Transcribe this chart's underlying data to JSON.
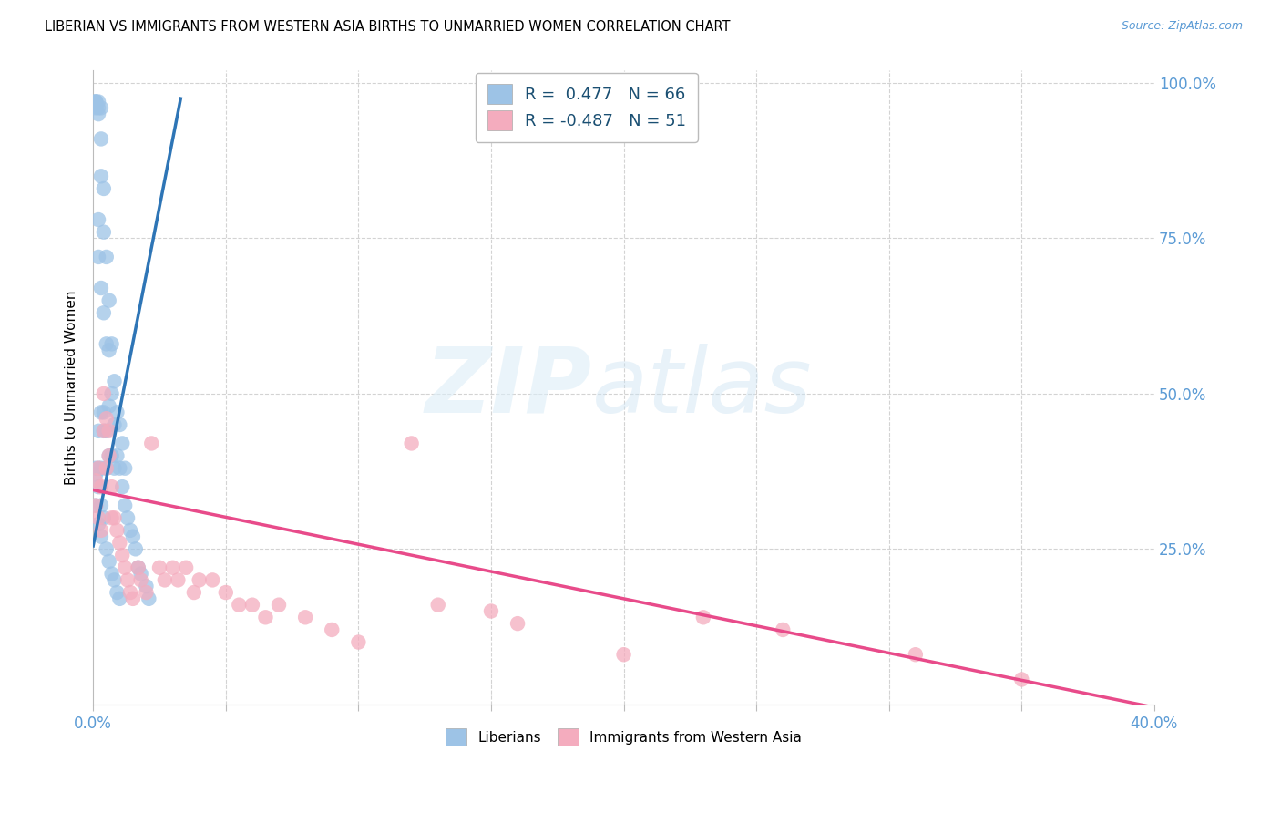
{
  "title": "LIBERIAN VS IMMIGRANTS FROM WESTERN ASIA BIRTHS TO UNMARRIED WOMEN CORRELATION CHART",
  "source": "Source: ZipAtlas.com",
  "ylabel": "Births to Unmarried Women",
  "blue_color": "#9dc3e6",
  "pink_color": "#f4acbe",
  "blue_line_color": "#2e75b6",
  "pink_line_color": "#e84b8a",
  "legend_text1": "R =  0.477   N = 66",
  "legend_text2": "R = -0.487   N = 51",
  "legend_label1": "Liberians",
  "legend_label2": "Immigrants from Western Asia",
  "watermark_zip": "ZIP",
  "watermark_atlas": "atlas",
  "x_min": 0.0,
  "x_max": 0.4,
  "y_min": 0.0,
  "y_max": 1.02,
  "right_yticks": [
    0.25,
    0.5,
    0.75,
    1.0
  ],
  "right_yticklabels": [
    "25.0%",
    "50.0%",
    "75.0%",
    "100.0%"
  ],
  "tick_color": "#5b9bd5",
  "blue_scatter_x": [
    0.001,
    0.001,
    0.001,
    0.001,
    0.001,
    0.002,
    0.002,
    0.002,
    0.002,
    0.002,
    0.002,
    0.002,
    0.003,
    0.003,
    0.003,
    0.003,
    0.003,
    0.003,
    0.004,
    0.004,
    0.004,
    0.004,
    0.004,
    0.005,
    0.005,
    0.005,
    0.005,
    0.006,
    0.006,
    0.006,
    0.006,
    0.007,
    0.007,
    0.007,
    0.008,
    0.008,
    0.008,
    0.009,
    0.009,
    0.01,
    0.01,
    0.011,
    0.011,
    0.012,
    0.012,
    0.013,
    0.014,
    0.015,
    0.016,
    0.017,
    0.018,
    0.02,
    0.021,
    0.001,
    0.001,
    0.002,
    0.002,
    0.003,
    0.003,
    0.004,
    0.005,
    0.006,
    0.007,
    0.008,
    0.009,
    0.01
  ],
  "blue_scatter_y": [
    0.97,
    0.97,
    0.97,
    0.96,
    0.37,
    0.97,
    0.96,
    0.95,
    0.78,
    0.72,
    0.44,
    0.38,
    0.96,
    0.91,
    0.85,
    0.67,
    0.47,
    0.38,
    0.83,
    0.76,
    0.63,
    0.47,
    0.44,
    0.72,
    0.58,
    0.44,
    0.38,
    0.65,
    0.57,
    0.48,
    0.4,
    0.58,
    0.5,
    0.4,
    0.52,
    0.45,
    0.38,
    0.47,
    0.4,
    0.45,
    0.38,
    0.42,
    0.35,
    0.38,
    0.32,
    0.3,
    0.28,
    0.27,
    0.25,
    0.22,
    0.21,
    0.19,
    0.17,
    0.38,
    0.32,
    0.35,
    0.29,
    0.32,
    0.27,
    0.3,
    0.25,
    0.23,
    0.21,
    0.2,
    0.18,
    0.17
  ],
  "pink_scatter_x": [
    0.001,
    0.001,
    0.002,
    0.002,
    0.003,
    0.003,
    0.004,
    0.004,
    0.005,
    0.005,
    0.006,
    0.006,
    0.007,
    0.007,
    0.008,
    0.009,
    0.01,
    0.011,
    0.012,
    0.013,
    0.014,
    0.015,
    0.017,
    0.018,
    0.02,
    0.022,
    0.025,
    0.027,
    0.03,
    0.032,
    0.035,
    0.038,
    0.04,
    0.045,
    0.05,
    0.055,
    0.06,
    0.065,
    0.07,
    0.08,
    0.09,
    0.1,
    0.12,
    0.13,
    0.15,
    0.16,
    0.2,
    0.23,
    0.26,
    0.31,
    0.35
  ],
  "pink_scatter_y": [
    0.36,
    0.32,
    0.38,
    0.3,
    0.35,
    0.28,
    0.5,
    0.44,
    0.46,
    0.38,
    0.44,
    0.4,
    0.35,
    0.3,
    0.3,
    0.28,
    0.26,
    0.24,
    0.22,
    0.2,
    0.18,
    0.17,
    0.22,
    0.2,
    0.18,
    0.42,
    0.22,
    0.2,
    0.22,
    0.2,
    0.22,
    0.18,
    0.2,
    0.2,
    0.18,
    0.16,
    0.16,
    0.14,
    0.16,
    0.14,
    0.12,
    0.1,
    0.42,
    0.16,
    0.15,
    0.13,
    0.08,
    0.14,
    0.12,
    0.08,
    0.04
  ],
  "blue_line_x0": 0.0,
  "blue_line_x1": 0.033,
  "blue_line_y0": 0.255,
  "blue_line_y1": 0.975,
  "pink_line_x0": 0.0,
  "pink_line_x1": 0.4,
  "pink_line_y0": 0.345,
  "pink_line_y1": -0.005
}
